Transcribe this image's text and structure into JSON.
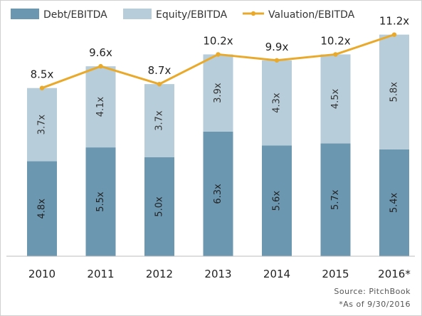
{
  "chart_data": {
    "type": "bar",
    "stacked": true,
    "categories": [
      "2010",
      "2011",
      "2012",
      "2013",
      "2014",
      "2015",
      "2016*"
    ],
    "series": [
      {
        "name": "Debt/EBITDA",
        "type": "bar",
        "values": [
          4.8,
          5.5,
          5.0,
          6.3,
          5.6,
          5.7,
          5.4
        ],
        "labels": [
          "4.8x",
          "5.5x",
          "5.0x",
          "6.3x",
          "5.6x",
          "5.7x",
          "5.4x"
        ],
        "color": "#6b97b1"
      },
      {
        "name": "Equity/EBITDA",
        "type": "bar",
        "values": [
          3.7,
          4.1,
          3.7,
          3.9,
          4.3,
          4.5,
          5.8
        ],
        "labels": [
          "3.7x",
          "4.1x",
          "3.7x",
          "3.9x",
          "4.3x",
          "4.5x",
          "5.8x"
        ],
        "color": "#b7cdd9"
      },
      {
        "name": "Valuation/EBITDA",
        "type": "line",
        "values": [
          8.5,
          9.6,
          8.7,
          10.2,
          9.9,
          10.2,
          11.2
        ],
        "labels": [
          "8.5x",
          "9.6x",
          "8.7x",
          "10.2x",
          "9.9x",
          "10.2x",
          "11.2x"
        ],
        "color": "#e9a92b"
      }
    ],
    "ylim": [
      0,
      11.6
    ],
    "legend_position": "top",
    "grid": false
  },
  "notes": {
    "source": "Source: PitchBook",
    "asof": "*As of 9/30/2016"
  }
}
